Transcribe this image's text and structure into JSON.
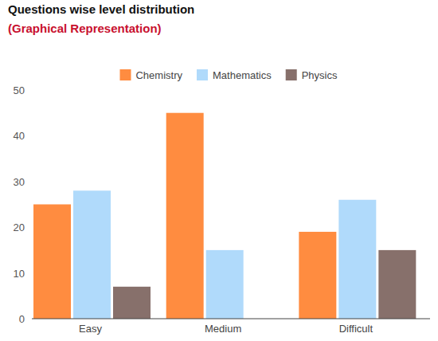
{
  "chart_data": {
    "type": "bar",
    "title": "Questions wise level distribution",
    "subtitle": "(Graphical Representation)",
    "categories": [
      "Easy",
      "Medium",
      "Difficult"
    ],
    "series": [
      {
        "name": "Chemistry",
        "color": "#ff8c40",
        "values": [
          25,
          45,
          19
        ]
      },
      {
        "name": "Mathematics",
        "color": "#b0dafb",
        "values": [
          28,
          15,
          26
        ]
      },
      {
        "name": "Physics",
        "color": "#87706b",
        "values": [
          7,
          0,
          15
        ]
      }
    ],
    "ylim": [
      0,
      50
    ],
    "yticks": [
      0,
      10,
      20,
      30,
      40,
      50
    ],
    "grid": false,
    "legend": "top"
  }
}
